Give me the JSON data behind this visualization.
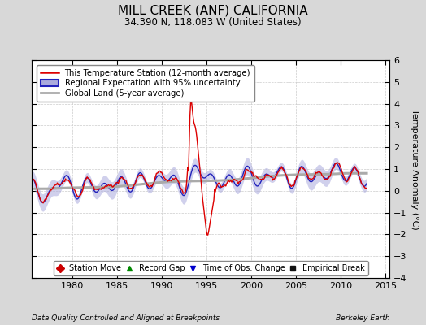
{
  "title": "MILL CREEK (ANF) CALIFORNIA",
  "subtitle": "34.390 N, 118.083 W (United States)",
  "xlabel_left": "Data Quality Controlled and Aligned at Breakpoints",
  "xlabel_right": "Berkeley Earth",
  "ylabel": "Temperature Anomaly (°C)",
  "xlim": [
    1975.5,
    2015.5
  ],
  "ylim": [
    -4,
    6
  ],
  "yticks": [
    -4,
    -3,
    -2,
    -1,
    0,
    1,
    2,
    3,
    4,
    5,
    6
  ],
  "xticks": [
    1980,
    1985,
    1990,
    1995,
    2000,
    2005,
    2010,
    2015
  ],
  "bg_color": "#d8d8d8",
  "plot_bg_color": "#ffffff",
  "grid_color": "#cccccc",
  "station_color": "#dd0000",
  "regional_color": "#2222bb",
  "regional_fill": "#aaaadd",
  "global_color": "#aaaaaa",
  "legend_line_entries": [
    {
      "label": "This Temperature Station (12-month average)",
      "color": "#dd0000",
      "lw": 1.5
    },
    {
      "label": "Regional Expectation with 95% uncertainty",
      "color": "#2222bb",
      "fill": "#aaaadd"
    },
    {
      "label": "Global Land (5-year average)",
      "color": "#aaaaaa",
      "lw": 2.0
    }
  ],
  "legend_marker_entries": [
    {
      "label": "Station Move",
      "color": "#cc0000",
      "marker": "D"
    },
    {
      "label": "Record Gap",
      "color": "#008800",
      "marker": "^"
    },
    {
      "label": "Time of Obs. Change",
      "color": "#0000cc",
      "marker": "v"
    },
    {
      "label": "Empirical Break",
      "color": "#111111",
      "marker": "s"
    }
  ]
}
